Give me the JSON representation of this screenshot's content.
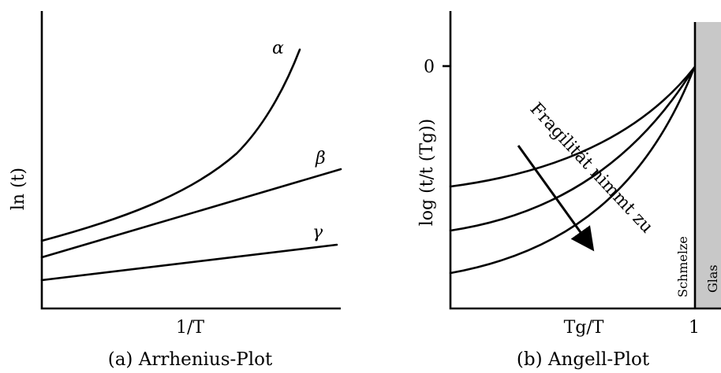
{
  "chart_data": [
    {
      "type": "line",
      "title": "",
      "caption": "(a) Arrhenius-Plot",
      "xlabel": "1/T",
      "ylabel": "ln (t)",
      "series": [
        {
          "name": "α"
        },
        {
          "name": "β"
        },
        {
          "name": "γ"
        }
      ]
    },
    {
      "type": "line",
      "title": "",
      "caption": "(b) Angell-Plot",
      "xlabel": "Tg/T",
      "ylabel": "log (t/t (Tg))",
      "y_tick_label": "0",
      "x_tick_label": "1",
      "annotation": "Fragilität nimmt zu",
      "region_labels": {
        "liquid": "Schmelze",
        "glass": "Glas"
      },
      "glass_region_color": "#c8c8c8"
    }
  ]
}
